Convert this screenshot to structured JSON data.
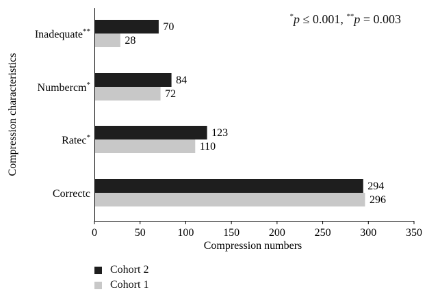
{
  "chart_data": {
    "type": "bar",
    "orientation": "horizontal",
    "categories": [
      "Inadequate**",
      "Numbercm*",
      "Ratec*",
      "Correctc"
    ],
    "category_labels": [
      {
        "base": "Inadequate",
        "sup": "**"
      },
      {
        "base": "Numbercm",
        "sup": "*"
      },
      {
        "base": "Ratec",
        "sup": "*"
      },
      {
        "base": "Correctc",
        "sup": ""
      }
    ],
    "series": [
      {
        "name": "Cohort 2",
        "color": "#1e1e1e",
        "values": [
          70,
          84,
          123,
          294
        ]
      },
      {
        "name": "Cohort 1",
        "color": "#c8c8c8",
        "values": [
          28,
          72,
          110,
          296
        ]
      }
    ],
    "xlabel": "Compression numbers",
    "ylabel": "Compression characteristics",
    "xlim": [
      0,
      350
    ],
    "xticks": [
      0,
      50,
      100,
      150,
      200,
      250,
      300,
      350
    ],
    "grid": false,
    "legend_position": "bottom-left",
    "annotation": {
      "p1": "0.001",
      "p2": "0.003"
    }
  }
}
